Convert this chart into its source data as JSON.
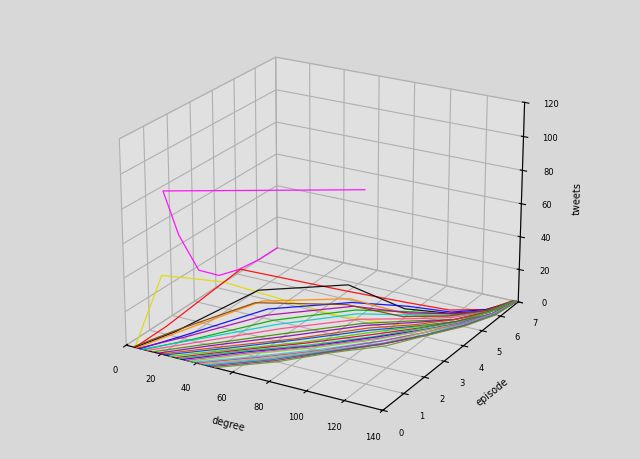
{
  "xlabel": "degree",
  "ylabel": "episode",
  "zlabel": "tweets",
  "xlim": [
    0,
    140
  ],
  "ylim": [
    0,
    7
  ],
  "zlim": [
    0,
    120
  ],
  "xticks": [
    0,
    20,
    40,
    60,
    80,
    100,
    120,
    140
  ],
  "yticks": [
    0,
    1,
    2,
    3,
    4,
    5,
    6,
    7
  ],
  "zticks": [
    0,
    20,
    40,
    60,
    80,
    100,
    120
  ],
  "elev": 22,
  "azim": -60,
  "background_color": "#f0f0f0",
  "lines": [
    {
      "color": "#ff00ff",
      "x": [
        130,
        10,
        5,
        3,
        2,
        1,
        1,
        0
      ],
      "y": [
        0,
        1,
        2,
        3,
        4,
        5,
        6,
        7
      ],
      "z": [
        120,
        85,
        50,
        20,
        8,
        3,
        1,
        0
      ]
    },
    {
      "color": "#dddd00",
      "x": [
        5,
        8,
        30,
        80,
        110,
        125,
        132,
        138
      ],
      "y": [
        0,
        1,
        2,
        3,
        4,
        5,
        6,
        7
      ],
      "z": [
        0,
        35,
        28,
        12,
        4,
        1,
        0,
        0
      ]
    },
    {
      "color": "#ff0000",
      "x": [
        5,
        10,
        40,
        85,
        108,
        122,
        132,
        138
      ],
      "y": [
        0,
        1,
        2,
        3,
        4,
        5,
        6,
        7
      ],
      "z": [
        0,
        5,
        38,
        28,
        18,
        8,
        2,
        0
      ]
    },
    {
      "color": "#000000",
      "x": [
        5,
        15,
        50,
        88,
        108,
        122,
        132,
        138
      ],
      "y": [
        0,
        1,
        2,
        3,
        4,
        5,
        6,
        7
      ],
      "z": [
        0,
        3,
        28,
        32,
        14,
        6,
        1,
        0
      ]
    },
    {
      "color": "#0000ff",
      "x": [
        8,
        20,
        55,
        90,
        110,
        123,
        132,
        139
      ],
      "y": [
        0,
        1,
        2,
        3,
        4,
        5,
        6,
        7
      ],
      "z": [
        0,
        2,
        18,
        22,
        16,
        7,
        2,
        0
      ]
    },
    {
      "color": "#00aa00",
      "x": [
        10,
        25,
        58,
        92,
        111,
        124,
        133,
        139
      ],
      "y": [
        0,
        1,
        2,
        3,
        4,
        5,
        6,
        7
      ],
      "z": [
        0,
        1,
        12,
        18,
        13,
        6,
        1,
        0
      ]
    },
    {
      "color": "#ff8800",
      "x": [
        6,
        18,
        52,
        89,
        109,
        123,
        132,
        138
      ],
      "y": [
        0,
        1,
        2,
        3,
        4,
        5,
        6,
        7
      ],
      "z": [
        0,
        4,
        22,
        24,
        11,
        5,
        1,
        0
      ]
    },
    {
      "color": "#aa00aa",
      "x": [
        7,
        22,
        54,
        91,
        110,
        123,
        132,
        138
      ],
      "y": [
        0,
        1,
        2,
        3,
        4,
        5,
        6,
        7
      ],
      "z": [
        0,
        2,
        14,
        20,
        12,
        6,
        1,
        0
      ]
    },
    {
      "color": "#00cccc",
      "x": [
        9,
        26,
        60,
        93,
        111,
        124,
        133,
        138
      ],
      "y": [
        0,
        1,
        2,
        3,
        4,
        5,
        6,
        7
      ],
      "z": [
        0,
        1,
        10,
        16,
        11,
        5,
        1,
        0
      ]
    },
    {
      "color": "#884400",
      "x": [
        4,
        14,
        48,
        87,
        107,
        121,
        131,
        137
      ],
      "y": [
        0,
        1,
        2,
        3,
        4,
        5,
        6,
        7
      ],
      "z": [
        0,
        3,
        20,
        20,
        9,
        4,
        1,
        0
      ]
    },
    {
      "color": "#ff4488",
      "x": [
        12,
        30,
        62,
        94,
        112,
        124,
        133,
        139
      ],
      "y": [
        0,
        1,
        2,
        3,
        4,
        5,
        6,
        7
      ],
      "z": [
        0,
        1,
        8,
        13,
        9,
        4,
        1,
        0
      ]
    },
    {
      "color": "#448800",
      "x": [
        15,
        35,
        65,
        96,
        113,
        125,
        133,
        139
      ],
      "y": [
        0,
        1,
        2,
        3,
        4,
        5,
        6,
        7
      ],
      "z": [
        0,
        1,
        6,
        11,
        8,
        3,
        1,
        0
      ]
    },
    {
      "color": "#8800aa",
      "x": [
        18,
        38,
        67,
        97,
        113,
        125,
        134,
        139
      ],
      "y": [
        0,
        1,
        2,
        3,
        4,
        5,
        6,
        7
      ],
      "z": [
        0,
        1,
        5,
        10,
        7,
        3,
        1,
        0
      ]
    },
    {
      "color": "#cc4400",
      "x": [
        20,
        42,
        70,
        99,
        114,
        125,
        134,
        139
      ],
      "y": [
        0,
        1,
        2,
        3,
        4,
        5,
        6,
        7
      ],
      "z": [
        0,
        1,
        4,
        9,
        6,
        3,
        1,
        0
      ]
    },
    {
      "color": "#0044cc",
      "x": [
        22,
        45,
        72,
        100,
        114,
        126,
        134,
        139
      ],
      "y": [
        0,
        1,
        2,
        3,
        4,
        5,
        6,
        7
      ],
      "z": [
        0,
        1,
        4,
        8,
        5,
        2,
        1,
        0
      ]
    },
    {
      "color": "#44cc00",
      "x": [
        25,
        48,
        74,
        101,
        115,
        126,
        134,
        139
      ],
      "y": [
        0,
        1,
        2,
        3,
        4,
        5,
        6,
        7
      ],
      "z": [
        0,
        1,
        3,
        7,
        5,
        2,
        1,
        0
      ]
    },
    {
      "color": "#cc0044",
      "x": [
        28,
        50,
        76,
        102,
        115,
        126,
        135,
        139
      ],
      "y": [
        0,
        1,
        2,
        3,
        4,
        5,
        6,
        7
      ],
      "z": [
        0,
        1,
        3,
        6,
        4,
        2,
        0,
        0
      ]
    },
    {
      "color": "#00cc44",
      "x": [
        30,
        52,
        77,
        103,
        116,
        127,
        135,
        139
      ],
      "y": [
        0,
        1,
        2,
        3,
        4,
        5,
        6,
        7
      ],
      "z": [
        0,
        1,
        2,
        5,
        4,
        2,
        0,
        0
      ]
    },
    {
      "color": "#4400cc",
      "x": [
        32,
        54,
        79,
        104,
        116,
        127,
        135,
        139
      ],
      "y": [
        0,
        1,
        2,
        3,
        4,
        5,
        6,
        7
      ],
      "z": [
        0,
        1,
        2,
        5,
        3,
        1,
        0,
        0
      ]
    },
    {
      "color": "#cc44aa",
      "x": [
        34,
        56,
        80,
        104,
        117,
        127,
        135,
        139
      ],
      "y": [
        0,
        1,
        2,
        3,
        4,
        5,
        6,
        7
      ],
      "z": [
        0,
        1,
        2,
        4,
        3,
        1,
        0,
        0
      ]
    },
    {
      "color": "#88cc44",
      "x": [
        36,
        58,
        82,
        105,
        117,
        128,
        136,
        139
      ],
      "y": [
        0,
        1,
        2,
        3,
        4,
        5,
        6,
        7
      ],
      "z": [
        0,
        1,
        2,
        4,
        3,
        1,
        0,
        0
      ]
    },
    {
      "color": "#44ccaa",
      "x": [
        38,
        60,
        83,
        106,
        118,
        128,
        136,
        139
      ],
      "y": [
        0,
        1,
        2,
        3,
        4,
        5,
        6,
        7
      ],
      "z": [
        0,
        0,
        1,
        3,
        2,
        1,
        0,
        0
      ]
    },
    {
      "color": "#aa44cc",
      "x": [
        40,
        62,
        85,
        106,
        118,
        128,
        136,
        139
      ],
      "y": [
        0,
        1,
        2,
        3,
        4,
        5,
        6,
        7
      ],
      "z": [
        0,
        0,
        1,
        3,
        2,
        1,
        0,
        0
      ]
    },
    {
      "color": "#ccaa44",
      "x": [
        42,
        64,
        86,
        107,
        118,
        129,
        136,
        139
      ],
      "y": [
        0,
        1,
        2,
        3,
        4,
        5,
        6,
        7
      ],
      "z": [
        0,
        0,
        1,
        2,
        2,
        1,
        0,
        0
      ]
    },
    {
      "color": "#44aacc",
      "x": [
        44,
        66,
        87,
        107,
        119,
        129,
        136,
        139
      ],
      "y": [
        0,
        1,
        2,
        3,
        4,
        5,
        6,
        7
      ],
      "z": [
        0,
        0,
        1,
        2,
        1,
        1,
        0,
        0
      ]
    },
    {
      "color": "#336699",
      "x": [
        46,
        68,
        88,
        108,
        119,
        129,
        137,
        139
      ],
      "y": [
        0,
        1,
        2,
        3,
        4,
        5,
        6,
        7
      ],
      "z": [
        0,
        0,
        1,
        2,
        1,
        0,
        0,
        0
      ]
    },
    {
      "color": "#993366",
      "x": [
        48,
        70,
        89,
        108,
        120,
        129,
        137,
        139
      ],
      "y": [
        0,
        1,
        2,
        3,
        4,
        5,
        6,
        7
      ],
      "z": [
        0,
        0,
        1,
        2,
        1,
        0,
        0,
        0
      ]
    },
    {
      "color": "#669933",
      "x": [
        50,
        72,
        90,
        109,
        120,
        130,
        137,
        139
      ],
      "y": [
        0,
        1,
        2,
        3,
        4,
        5,
        6,
        7
      ],
      "z": [
        0,
        0,
        1,
        1,
        1,
        0,
        0,
        0
      ]
    }
  ]
}
